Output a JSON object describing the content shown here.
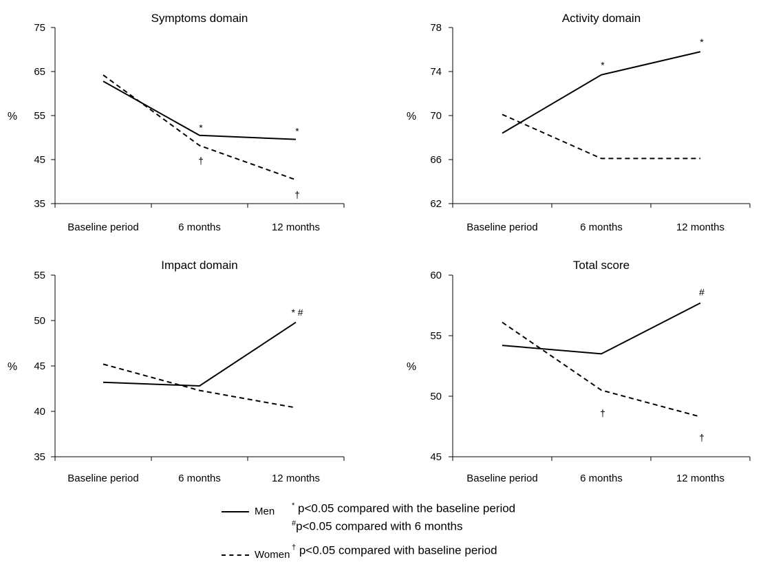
{
  "chart_data": [
    {
      "type": "line",
      "title": "Symptoms domain",
      "ylabel": "%",
      "categories": [
        "Baseline period",
        "6 months",
        "12 months"
      ],
      "ylim": [
        35,
        75
      ],
      "yticks": [
        35,
        45,
        55,
        65,
        75
      ],
      "series": [
        {
          "name": "Men",
          "values": [
            62.8,
            50.5,
            49.6
          ]
        },
        {
          "name": "Women",
          "values": [
            64.2,
            48.2,
            40.4
          ]
        }
      ],
      "annotations": [
        {
          "text": "*",
          "category": "6 months",
          "y": 52.3
        },
        {
          "text": "*",
          "category": "12 months",
          "y": 51.5
        },
        {
          "text": "†",
          "category": "6 months",
          "y": 44.8
        },
        {
          "text": "†",
          "category": "12 months",
          "y": 37.0
        }
      ]
    },
    {
      "type": "line",
      "title": "Activity domain",
      "ylabel": "%",
      "categories": [
        "Baseline period",
        "6 months",
        "12 months"
      ],
      "ylim": [
        62,
        78
      ],
      "yticks": [
        62,
        66,
        70,
        74,
        78
      ],
      "series": [
        {
          "name": "Men",
          "values": [
            68.4,
            73.7,
            75.8
          ]
        },
        {
          "name": "Women",
          "values": [
            70.1,
            66.1,
            66.1
          ]
        }
      ],
      "annotations": [
        {
          "text": "*",
          "category": "6 months",
          "y": 74.6
        },
        {
          "text": "*",
          "category": "12 months",
          "y": 76.7
        }
      ]
    },
    {
      "type": "line",
      "title": "Impact domain",
      "ylabel": "%",
      "categories": [
        "Baseline period",
        "6 months",
        "12 months"
      ],
      "ylim": [
        35,
        55
      ],
      "yticks": [
        35,
        40,
        45,
        50,
        55
      ],
      "series": [
        {
          "name": "Men",
          "values": [
            43.2,
            42.8,
            49.8
          ]
        },
        {
          "name": "Women",
          "values": [
            45.2,
            42.3,
            40.4
          ]
        }
      ],
      "annotations": [
        {
          "text": "* #",
          "category": "12 months",
          "y": 50.9
        }
      ]
    },
    {
      "type": "line",
      "title": "Total score",
      "ylabel": "%",
      "categories": [
        "Baseline period",
        "6 months",
        "12 months"
      ],
      "ylim": [
        45,
        60
      ],
      "yticks": [
        45,
        50,
        55,
        60
      ],
      "series": [
        {
          "name": "Men",
          "values": [
            54.2,
            53.5,
            57.7
          ]
        },
        {
          "name": "Women",
          "values": [
            56.1,
            50.5,
            48.3
          ]
        }
      ],
      "annotations": [
        {
          "text": "#",
          "category": "12 months",
          "y": 58.6
        },
        {
          "text": "†",
          "category": "6 months",
          "y": 48.6
        },
        {
          "text": "†",
          "category": "12 months",
          "y": 46.6
        }
      ]
    }
  ],
  "legend": {
    "men_label": "Men",
    "women_label": "Women"
  },
  "notes": {
    "star_symbol": "*",
    "star_text": " p<0.05 compared with the baseline period",
    "hash_symbol": "#",
    "hash_text": "p<0.05 compared with 6 months",
    "dagger_symbol": "†",
    "dagger_text": " p<0.05 compared with baseline period"
  }
}
